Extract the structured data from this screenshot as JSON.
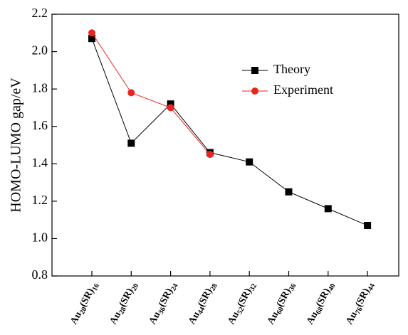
{
  "chart_data": {
    "type": "line",
    "ylabel": "HOMO-LUMO gap/eV",
    "categories": [
      "Au20(SR)16",
      "Au28(SR)20",
      "Au36(SR)24",
      "Au44(SR)28",
      "Au52(SR)32",
      "Au60(SR)36",
      "Au68(SR)40",
      "Au76(SR)44"
    ],
    "series": [
      {
        "name": "Theory",
        "color": "#000000",
        "marker": "square",
        "values": [
          2.07,
          1.51,
          1.72,
          1.46,
          1.41,
          1.25,
          1.16,
          1.07
        ]
      },
      {
        "name": "Experiment",
        "color": "#e8261e",
        "marker": "circle",
        "values": [
          2.1,
          1.78,
          1.7,
          1.45,
          null,
          null,
          null,
          null
        ]
      }
    ],
    "ylim": [
      0.8,
      2.2
    ],
    "yticks": [
      0.8,
      {
        "value": 1,
        "label": "1.0"
      },
      1.2,
      1.4,
      1.6,
      1.8,
      {
        "value": 2,
        "label": "2.0"
      },
      2.2
    ],
    "grid": false,
    "legend": "upper right"
  }
}
